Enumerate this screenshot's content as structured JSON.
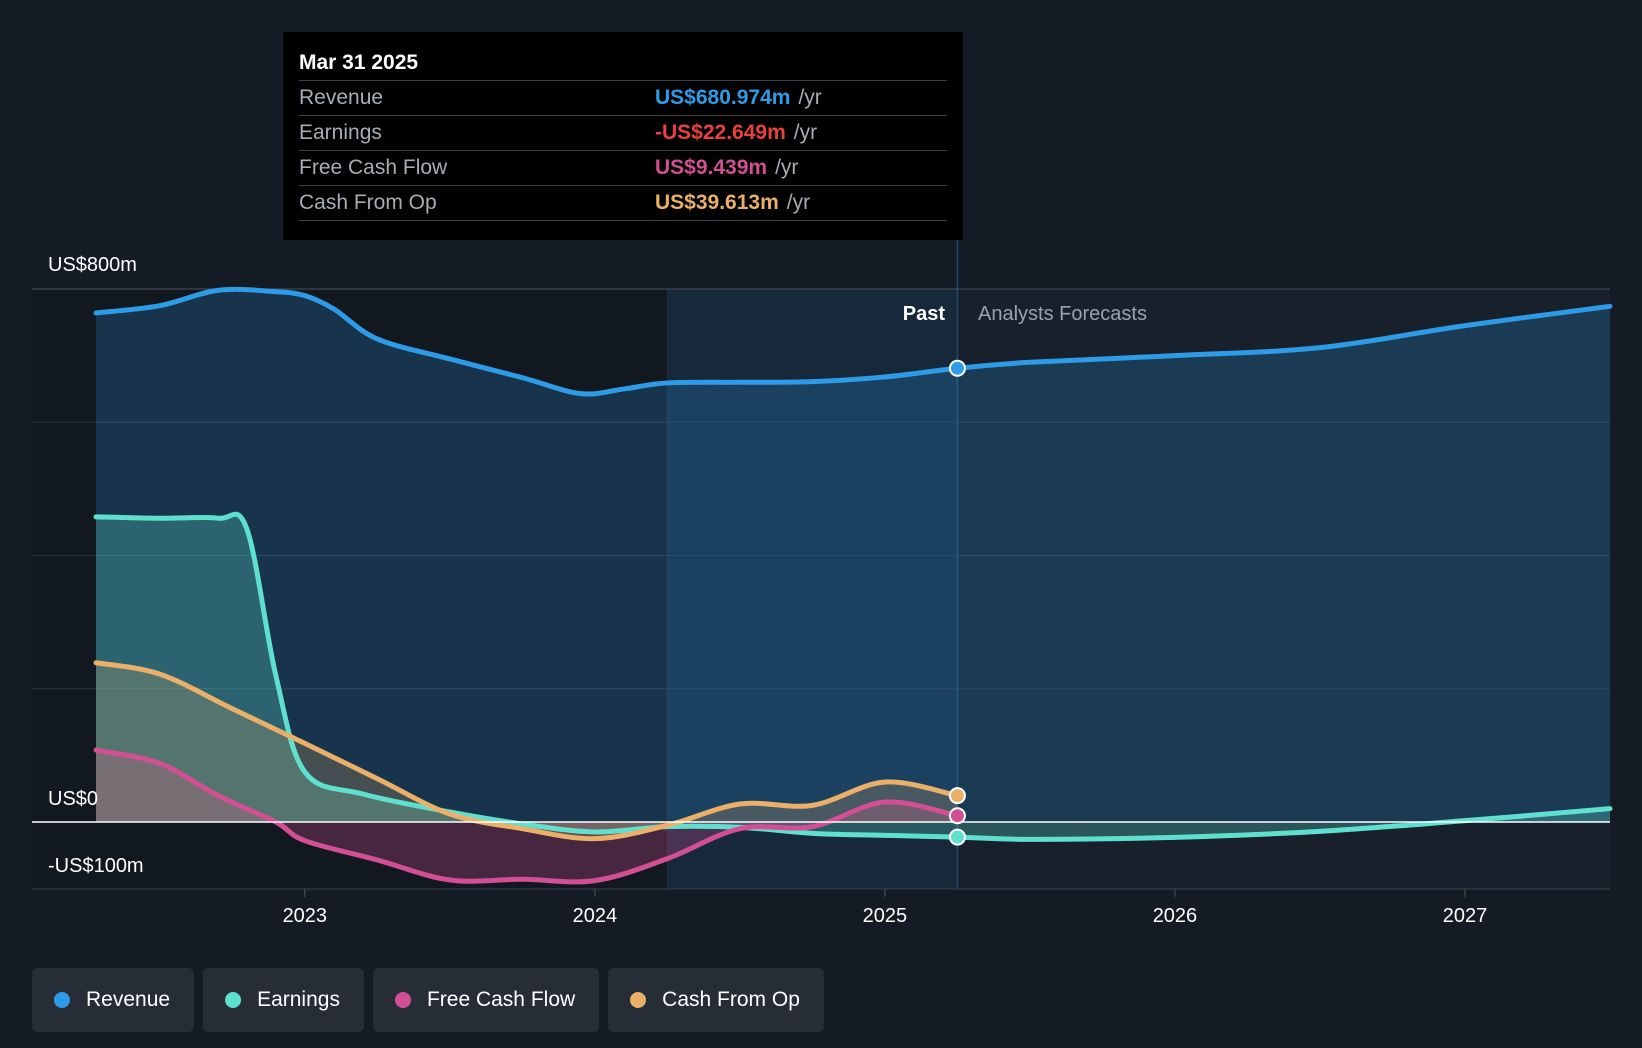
{
  "tooltip": {
    "date": "Mar 31 2025",
    "rows": [
      {
        "label": "Revenue",
        "value": "US$680.974m",
        "unit": "/yr",
        "color": "#2d9be6"
      },
      {
        "label": "Earnings",
        "value": "-US$22.649m",
        "unit": "/yr",
        "color": "#e8413e"
      },
      {
        "label": "Free Cash Flow",
        "value": "US$9.439m",
        "unit": "/yr",
        "color": "#d14f92"
      },
      {
        "label": "Cash From Op",
        "value": "US$39.613m",
        "unit": "/yr",
        "color": "#eab06a"
      }
    ]
  },
  "regions": {
    "past": "Past",
    "forecast": "Analysts Forecasts"
  },
  "chart_data": {
    "type": "line",
    "y_axis": {
      "top_label": "US$800m",
      "zero_label": "US$0",
      "bottom_label": "-US$100m",
      "ylim": [
        -100,
        800
      ]
    },
    "x_axis": {
      "ticks": [
        "2023",
        "2024",
        "2025",
        "2026",
        "2027"
      ],
      "xlim": [
        2022.28,
        2027.5
      ]
    },
    "grid": true,
    "highlight_x": 2025.25,
    "series": [
      {
        "name": "Revenue",
        "color": "#2d9be6",
        "points": [
          [
            2022.28,
            764
          ],
          [
            2022.5,
            775
          ],
          [
            2022.7,
            798
          ],
          [
            2022.9,
            796
          ],
          [
            2023.0,
            790
          ],
          [
            2023.1,
            770
          ],
          [
            2023.25,
            725
          ],
          [
            2023.5,
            695
          ],
          [
            2023.75,
            667
          ],
          [
            2023.95,
            643
          ],
          [
            2024.1,
            650
          ],
          [
            2024.25,
            659
          ],
          [
            2024.5,
            660
          ],
          [
            2024.75,
            661
          ],
          [
            2025.0,
            668
          ],
          [
            2025.25,
            681
          ],
          [
            2025.5,
            690
          ],
          [
            2026.0,
            700
          ],
          [
            2026.5,
            712
          ],
          [
            2027.0,
            745
          ],
          [
            2027.5,
            774
          ]
        ]
      },
      {
        "name": "Earnings",
        "color": "#5fe0cf",
        "points": [
          [
            2022.28,
            458
          ],
          [
            2022.5,
            456
          ],
          [
            2022.7,
            456
          ],
          [
            2022.8,
            440
          ],
          [
            2022.9,
            220
          ],
          [
            2023.0,
            75
          ],
          [
            2023.2,
            42
          ],
          [
            2023.5,
            15
          ],
          [
            2023.75,
            -3
          ],
          [
            2024.0,
            -15
          ],
          [
            2024.25,
            -7
          ],
          [
            2024.5,
            -8
          ],
          [
            2024.75,
            -17
          ],
          [
            2025.0,
            -20
          ],
          [
            2025.25,
            -22.649
          ],
          [
            2025.5,
            -26
          ],
          [
            2026.0,
            -23
          ],
          [
            2026.5,
            -14
          ],
          [
            2027.0,
            2
          ],
          [
            2027.5,
            20
          ]
        ]
      },
      {
        "name": "Free Cash Flow",
        "color": "#d14f92",
        "points": [
          [
            2022.28,
            108
          ],
          [
            2022.5,
            88
          ],
          [
            2022.7,
            40
          ],
          [
            2022.9,
            0
          ],
          [
            2023.0,
            -28
          ],
          [
            2023.25,
            -57
          ],
          [
            2023.5,
            -87
          ],
          [
            2023.75,
            -86
          ],
          [
            2024.0,
            -88
          ],
          [
            2024.25,
            -55
          ],
          [
            2024.5,
            -10
          ],
          [
            2024.75,
            -7
          ],
          [
            2025.0,
            30
          ],
          [
            2025.25,
            9.439
          ]
        ]
      },
      {
        "name": "Cash From Op",
        "color": "#eab06a",
        "points": [
          [
            2022.28,
            239
          ],
          [
            2022.5,
            222
          ],
          [
            2022.75,
            170
          ],
          [
            2023.0,
            118
          ],
          [
            2023.25,
            65
          ],
          [
            2023.5,
            12
          ],
          [
            2023.75,
            -10
          ],
          [
            2024.0,
            -25
          ],
          [
            2024.25,
            -5
          ],
          [
            2024.5,
            27
          ],
          [
            2024.75,
            25
          ],
          [
            2025.0,
            60
          ],
          [
            2025.25,
            39.613
          ]
        ]
      }
    ]
  },
  "legend": [
    {
      "label": "Revenue",
      "color": "#2d9be6"
    },
    {
      "label": "Earnings",
      "color": "#5fe0cf"
    },
    {
      "label": "Free Cash Flow",
      "color": "#d14f92"
    },
    {
      "label": "Cash From Op",
      "color": "#eab06a"
    }
  ]
}
